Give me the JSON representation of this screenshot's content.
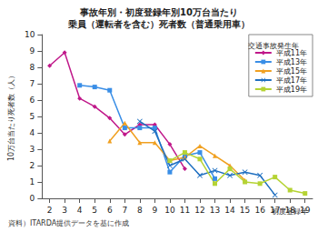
{
  "chart_data": {
    "type": "line",
    "title": "事故年別・初度登録年別10万台当たり\n乗員（運転者を含む）死者数（普通乗用車）",
    "y_label": "10万台当たり死者数（人）",
    "x_label": "初度登録年",
    "legend_title": "交通事故発生年",
    "source": "資料）ITARDA提供データを基に作成",
    "x": [
      2,
      3,
      4,
      5,
      6,
      7,
      8,
      9,
      10,
      11,
      12,
      13,
      14,
      15,
      16,
      17,
      18,
      19
    ],
    "series": [
      {
        "name": "平成11年",
        "color": "#c0188a",
        "marker": "diamond",
        "values": [
          8.1,
          8.9,
          6.1,
          5.6,
          4.9,
          3.9,
          4.5,
          4.5,
          3.3,
          1.8,
          null,
          null,
          null,
          null,
          null,
          null,
          null,
          null
        ]
      },
      {
        "name": "平成13年",
        "color": "#3a8ee6",
        "marker": "square",
        "values": [
          null,
          null,
          6.9,
          6.8,
          6.6,
          4.3,
          4.3,
          4.3,
          1.6,
          2.6,
          2.8,
          1.2,
          null,
          null,
          null,
          null,
          null,
          null
        ]
      },
      {
        "name": "平成15年",
        "color": "#f0a020",
        "marker": "triangle",
        "values": [
          null,
          null,
          null,
          null,
          3.5,
          4.6,
          3.4,
          3.4,
          2.3,
          2.5,
          3.2,
          2.6,
          2.0,
          1.1,
          null,
          null,
          null,
          null
        ]
      },
      {
        "name": "平成17年",
        "color": "#1f6fc0",
        "marker": "x",
        "values": [
          null,
          null,
          null,
          null,
          null,
          null,
          4.7,
          4.1,
          2.0,
          2.4,
          1.4,
          1.7,
          1.4,
          1.6,
          1.4,
          0.2,
          null,
          null
        ]
      },
      {
        "name": "平成19年",
        "color": "#b5d334",
        "marker": "square",
        "values": [
          null,
          null,
          null,
          null,
          null,
          null,
          null,
          null,
          2.3,
          2.8,
          2.4,
          0.9,
          1.8,
          1.0,
          0.9,
          1.3,
          0.5,
          0.3
        ]
      }
    ],
    "xlim": [
      1.5,
      19.5
    ],
    "xticks": [
      2,
      3,
      4,
      5,
      6,
      7,
      8,
      9,
      10,
      11,
      12,
      13,
      14,
      15,
      16,
      17,
      18,
      19
    ],
    "ylim": [
      0,
      10
    ],
    "yticks": [
      0,
      1,
      2,
      3,
      4,
      5,
      6,
      7,
      8,
      9,
      10
    ],
    "grid": false,
    "legend": "upper right"
  }
}
